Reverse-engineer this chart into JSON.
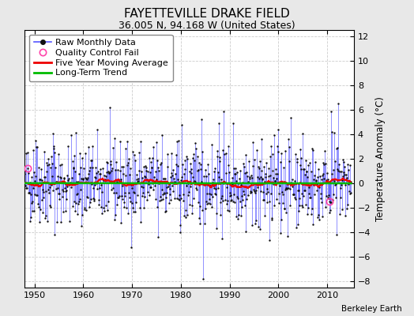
{
  "title": "FAYETTEVILLE DRAKE FIELD",
  "subtitle": "36.005 N, 94.168 W (United States)",
  "ylabel": "Temperature Anomaly (°C)",
  "watermark": "Berkeley Earth",
  "xlim": [
    1948.0,
    2015.5
  ],
  "ylim": [
    -8.5,
    12.5
  ],
  "yticks": [
    -8,
    -6,
    -4,
    -2,
    0,
    2,
    4,
    6,
    8,
    10,
    12
  ],
  "xticks": [
    1950,
    1960,
    1970,
    1980,
    1990,
    2000,
    2010
  ],
  "fig_bg_color": "#e8e8e8",
  "plot_bg_color": "#ffffff",
  "raw_line_color": "#5555ff",
  "raw_dot_color": "#111111",
  "moving_avg_color": "#ee0000",
  "trend_color": "#00bb00",
  "qc_fail_color": "#ff44aa",
  "title_fontsize": 11,
  "subtitle_fontsize": 9,
  "legend_fontsize": 8,
  "tick_labelsize": 8,
  "seed": 42,
  "start_year": 1948,
  "end_year": 2014,
  "qc_fail_times": [
    1948.6,
    2010.5
  ]
}
